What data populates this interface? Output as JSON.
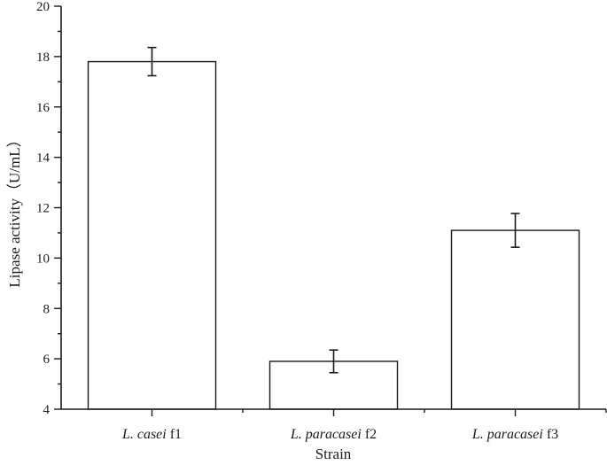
{
  "chart_data": {
    "type": "bar",
    "title": "",
    "xlabel": "Strain",
    "ylabel": "Lipase activity（U/mL）",
    "categories": [
      {
        "italic": "L. casei",
        "suffix": " f1"
      },
      {
        "italic": "L. paracasei",
        "suffix": " f2"
      },
      {
        "italic": "L. paracasei",
        "suffix": " f3"
      }
    ],
    "category_names": [
      "L. casei f1",
      "L. paracasei f2",
      "L. paracasei f3"
    ],
    "values": [
      17.8,
      5.9,
      11.1
    ],
    "errors": [
      0.56,
      0.45,
      0.67
    ],
    "ylim": [
      4,
      20
    ],
    "yticks": [
      4,
      6,
      8,
      10,
      12,
      14,
      16,
      18,
      20
    ],
    "yminor_ticks": [
      5,
      7,
      9,
      11,
      13,
      15,
      17,
      19
    ],
    "grid": false,
    "legend": null,
    "bar_fill": "#ffffff",
    "bar_edge": "#1a1a1a"
  }
}
